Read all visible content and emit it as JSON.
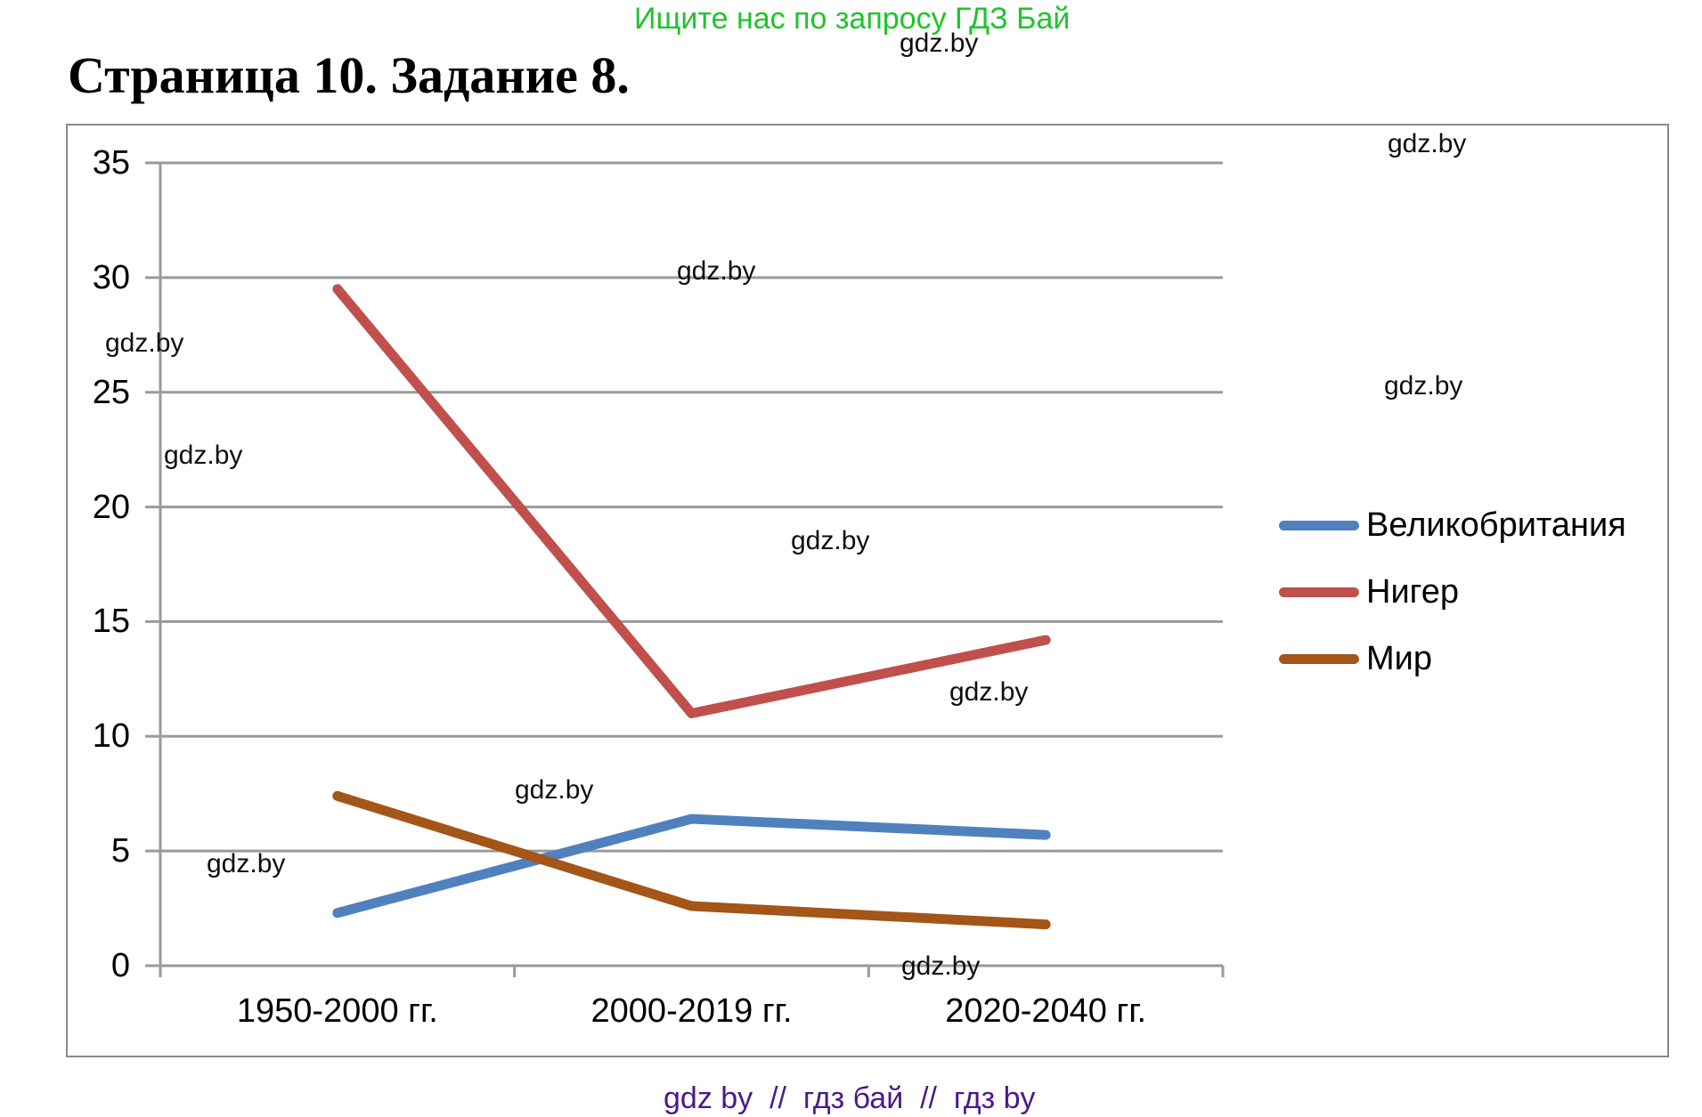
{
  "page": {
    "promo_banner": "Ищите нас по запросу ГДЗ Бай",
    "title": "Страница 10. Задание 8.",
    "footer": "gdz by  //  гдз бай  //  гдз by"
  },
  "watermarks": {
    "text": "gdz.by"
  },
  "colors": {
    "promo_green": "#1FC42C",
    "footer_purple": "#4A1A8C",
    "grid_gray": "#9A9A9A",
    "frame_gray": "#8A8A8A",
    "series_blue": "#4F81BD",
    "series_red": "#C0504D",
    "series_brown": "#A45518"
  },
  "chart_data": {
    "type": "line",
    "title": "",
    "xlabel": "",
    "ylabel": "",
    "categories": [
      "1950-2000 гг.",
      "2000-2019 гг.",
      "2020-2040 гг."
    ],
    "series": [
      {
        "name": "Великобритания",
        "color": "#4F81BD",
        "values": [
          2.3,
          6.4,
          5.7
        ]
      },
      {
        "name": "Нигер",
        "color": "#C0504D",
        "values": [
          29.5,
          11,
          14.2
        ]
      },
      {
        "name": "Мир",
        "color": "#A45518",
        "values": [
          7.4,
          2.6,
          1.8
        ]
      }
    ],
    "ylim": [
      0,
      35
    ],
    "ytick_step": 5,
    "yticks": [
      "0",
      "5",
      "10",
      "15",
      "20",
      "25",
      "30",
      "35"
    ],
    "grid": true,
    "legend_position": "right"
  }
}
